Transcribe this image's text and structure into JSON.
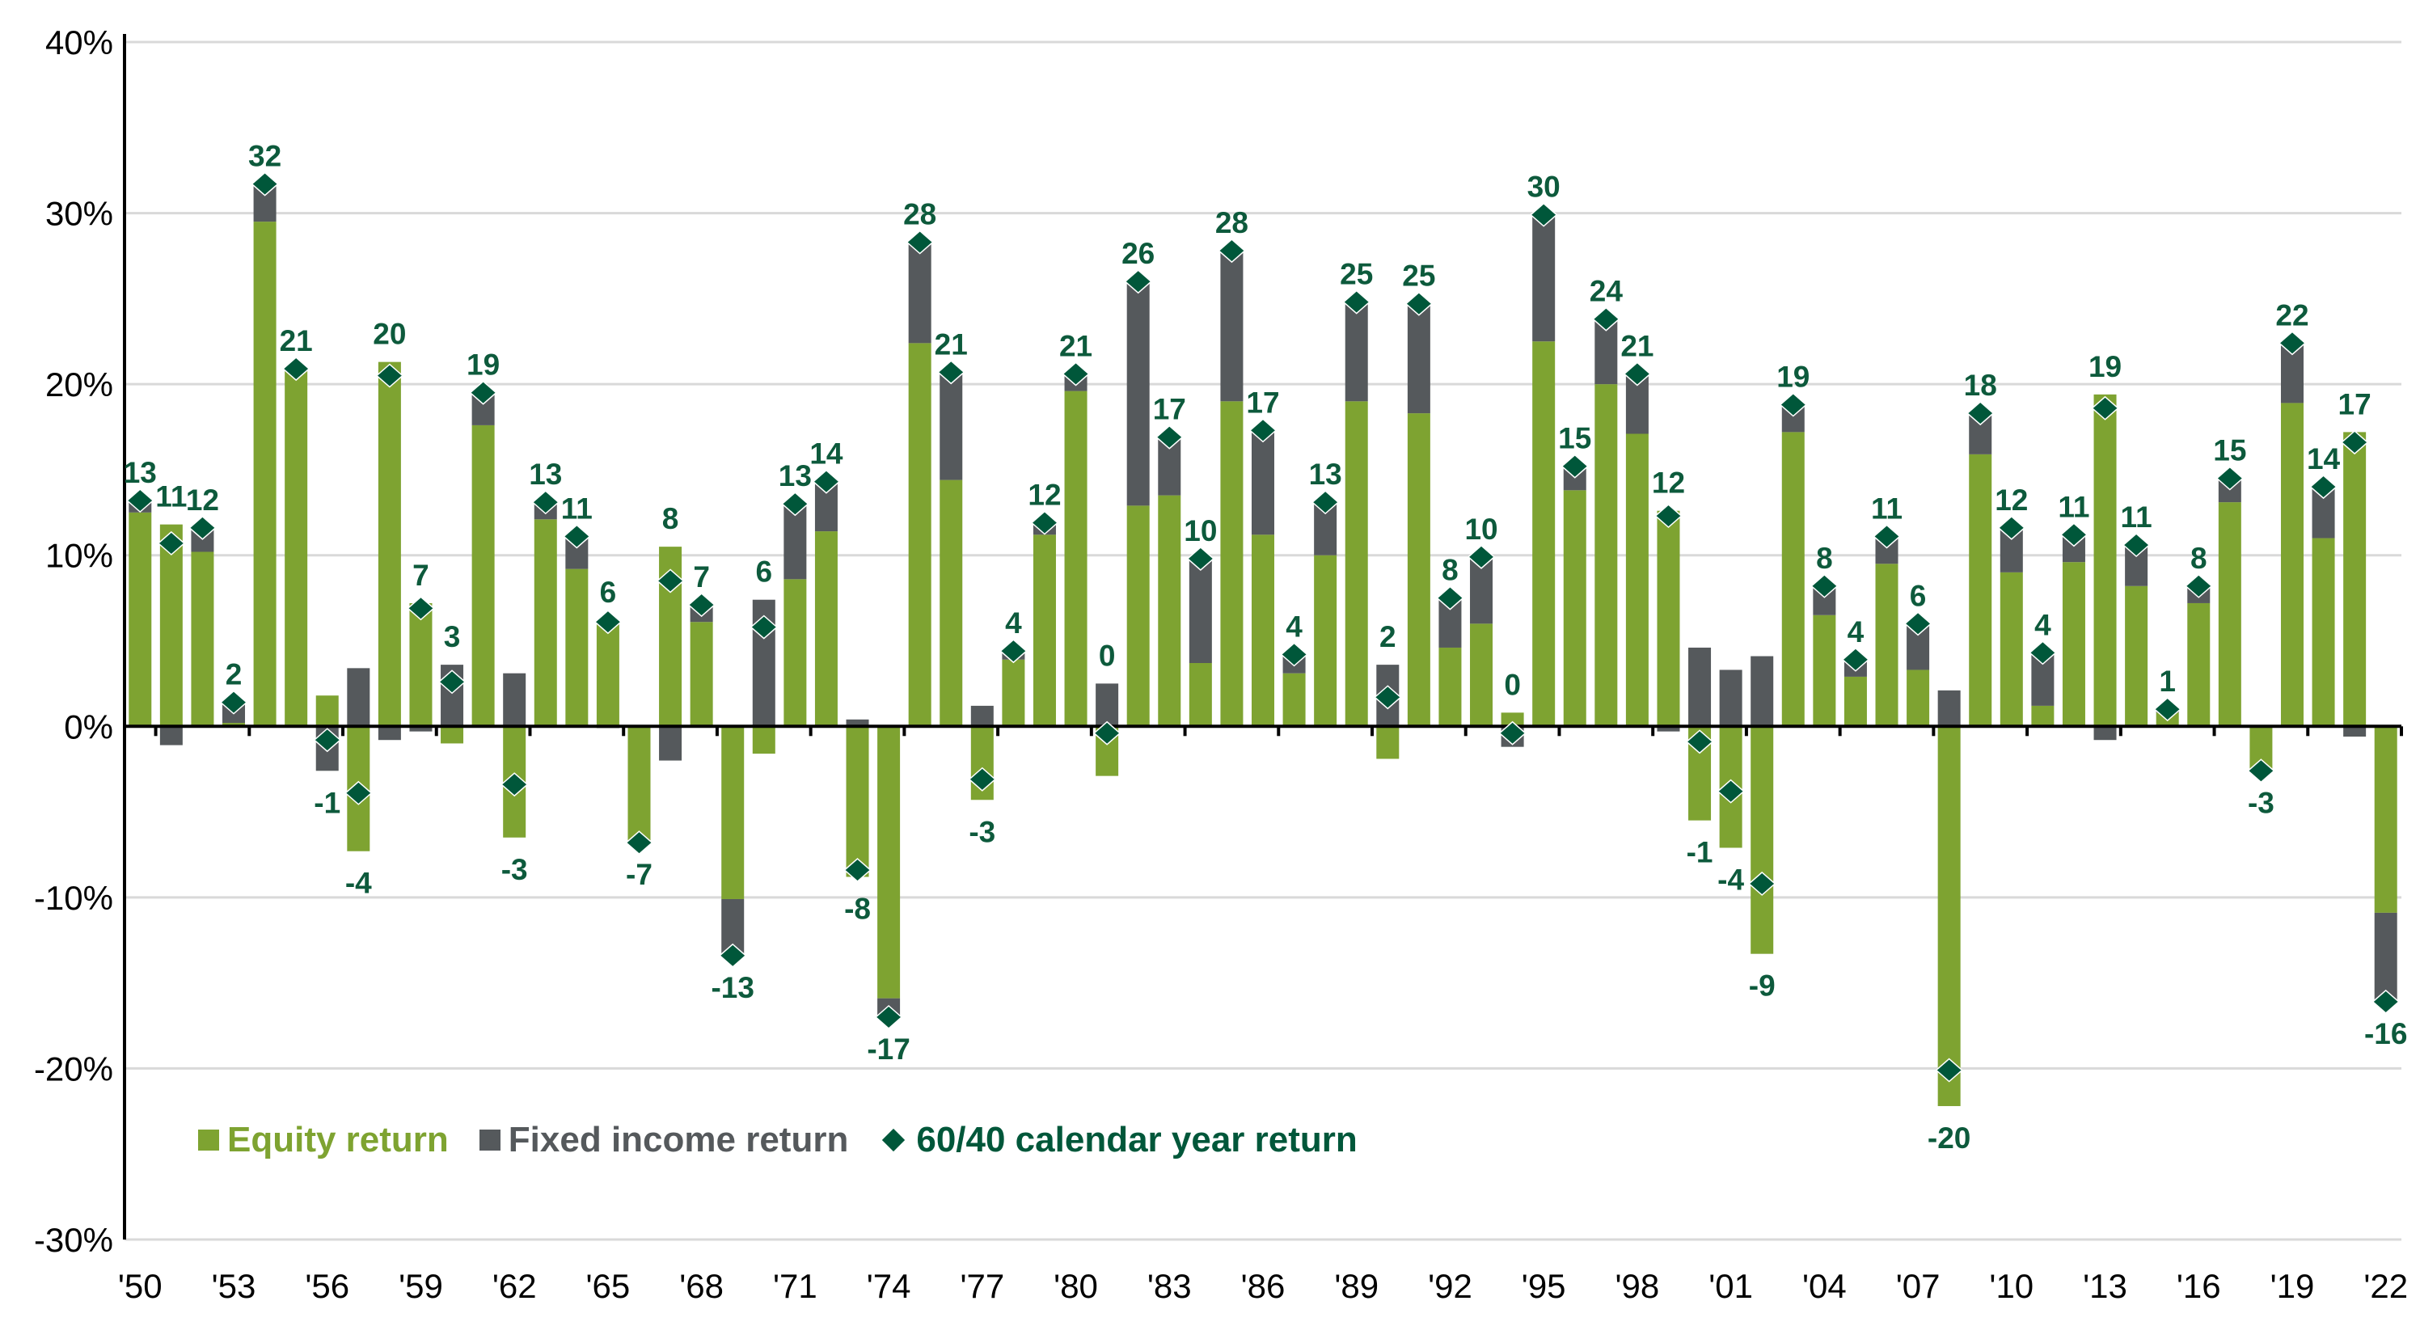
{
  "chart_data": {
    "type": "bar",
    "stacked": true,
    "title": "",
    "xlabel": "",
    "ylabel": "",
    "ylim": [
      -30,
      40
    ],
    "y_ticks": [
      -30,
      -20,
      -10,
      0,
      10,
      20,
      30,
      40
    ],
    "y_tick_labels": [
      "-30%",
      "-20%",
      "-10%",
      "0%",
      "10%",
      "20%",
      "30%",
      "40%"
    ],
    "x_tick_labels": [
      "'50",
      "'53",
      "'56",
      "'59",
      "'62",
      "'65",
      "'68",
      "'71",
      "'74",
      "'77",
      "'80",
      "'83",
      "'86",
      "'89",
      "'92",
      "'95",
      "'98",
      "'01",
      "'04",
      "'07",
      "'10",
      "'13",
      "'16",
      "'19",
      "'22"
    ],
    "grid": true,
    "legend_position": "bottom-left",
    "colors": {
      "equity": "#7ea331",
      "fixed_income": "#55595c",
      "marker": "#00573a",
      "label": "#0d5a3c"
    },
    "years": [
      1950,
      1951,
      1952,
      1953,
      1954,
      1955,
      1956,
      1957,
      1958,
      1959,
      1960,
      1961,
      1962,
      1963,
      1964,
      1965,
      1966,
      1967,
      1968,
      1969,
      1970,
      1971,
      1972,
      1973,
      1974,
      1975,
      1976,
      1977,
      1978,
      1979,
      1980,
      1981,
      1982,
      1983,
      1984,
      1985,
      1986,
      1987,
      1988,
      1989,
      1990,
      1991,
      1992,
      1993,
      1994,
      1995,
      1996,
      1997,
      1998,
      1999,
      2000,
      2001,
      2002,
      2003,
      2004,
      2005,
      2006,
      2007,
      2008,
      2009,
      2010,
      2011,
      2012,
      2013,
      2014,
      2015,
      2016,
      2017,
      2018,
      2019,
      2020,
      2021,
      2022
    ],
    "series": [
      {
        "name": "Equity return",
        "values": [
          12.5,
          11.8,
          10.2,
          0.2,
          29.5,
          20.9,
          1.8,
          -7.3,
          21.3,
          7.2,
          -1.0,
          17.6,
          -6.5,
          12.1,
          9.2,
          6.2,
          -6.8,
          10.5,
          6.1,
          -10.1,
          -1.6,
          8.6,
          11.4,
          -8.8,
          -15.9,
          22.4,
          14.4,
          -4.3,
          3.9,
          11.2,
          19.6,
          -2.9,
          12.9,
          13.5,
          3.7,
          19.0,
          11.2,
          3.1,
          10.0,
          19.0,
          -1.9,
          18.3,
          4.6,
          6.0,
          0.8,
          22.5,
          13.8,
          20.0,
          17.1,
          12.6,
          -5.5,
          -7.1,
          -13.3,
          17.2,
          6.5,
          2.9,
          9.5,
          3.3,
          -22.2,
          15.9,
          9.0,
          1.2,
          9.6,
          19.4,
          8.2,
          0.8,
          7.2,
          13.1,
          -2.6,
          18.9,
          11.0,
          17.2,
          -10.9
        ]
      },
      {
        "name": "Fixed income return",
        "values": [
          0.7,
          -1.1,
          1.4,
          1.2,
          2.2,
          0.0,
          -2.6,
          3.4,
          -0.8,
          -0.3,
          3.6,
          1.9,
          3.1,
          1.0,
          1.9,
          -0.1,
          0.0,
          -2.0,
          1.0,
          -3.3,
          7.4,
          4.4,
          2.9,
          0.4,
          -1.1,
          5.9,
          6.3,
          1.2,
          0.5,
          0.7,
          1.0,
          2.5,
          13.1,
          3.4,
          6.1,
          8.8,
          6.1,
          1.1,
          3.1,
          5.8,
          3.6,
          6.4,
          2.9,
          3.9,
          -1.2,
          7.4,
          1.4,
          3.8,
          3.5,
          -0.3,
          4.6,
          3.3,
          4.1,
          1.6,
          1.7,
          1.0,
          1.6,
          2.7,
          2.1,
          2.4,
          2.6,
          3.1,
          1.6,
          -0.8,
          2.4,
          0.2,
          1.0,
          1.4,
          0.0,
          3.5,
          3.0,
          -0.6,
          -5.2
        ]
      },
      {
        "name": "60/40 calendar year return",
        "labels": [
          "13",
          "11",
          "12",
          "2",
          "32",
          "21",
          "-1",
          "-4",
          "20",
          "7",
          "3",
          "19",
          "-3",
          "13",
          "11",
          "6",
          "-7",
          "8",
          "7",
          "-13",
          "6",
          "13",
          "14",
          "-8",
          "-17",
          "28",
          "21",
          "-3",
          "4",
          "12",
          "21",
          "0",
          "26",
          "17",
          "10",
          "28",
          "17",
          "4",
          "13",
          "25",
          "2",
          "25",
          "8",
          "10",
          "0",
          "30",
          "15",
          "24",
          "21",
          "12",
          "-1",
          "-4",
          "-9",
          "19",
          "8",
          "4",
          "11",
          "6",
          "-20",
          "18",
          "12",
          "4",
          "11",
          "19",
          "11",
          "1",
          "8",
          "15",
          "-3",
          "22",
          "14",
          "17",
          "-16"
        ]
      }
    ]
  },
  "legend": {
    "equity_label": "Equity return",
    "fixed_income_label": "Fixed income return",
    "marker_label": "60/40 calendar year return"
  }
}
